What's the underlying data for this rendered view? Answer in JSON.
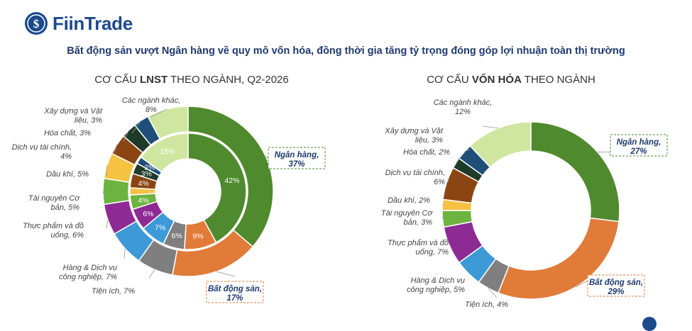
{
  "brand": {
    "name": "FiinTrade",
    "logo_icon": "fiintrade-logo-icon",
    "color": "#1c4a8c"
  },
  "headline": "Bất động sản vượt Ngân hàng về quy mô vốn hóa, đồng thời gia tăng tỷ trọng đóng góp lợi nhuận toàn thị trường",
  "chart_data": [
    {
      "type": "pie",
      "variant": "nested-donut",
      "title_prefix": "CƠ CẤU ",
      "title_bold": "LNST",
      "title_suffix": " THEO NGÀNH, Q2-2026",
      "categories": [
        "Ngân hàng",
        "Bất động sản",
        "Tiện ích",
        "Hàng & Dịch vụ công nghiệp",
        "Thực phẩm và đồ uống",
        "Tài nguyên Cơ bản",
        "Dầu khí",
        "Dịch vụ tài chính",
        "Hóa chất",
        "Xây dựng và Vật liệu",
        "Các ngành khác"
      ],
      "colors": [
        "#4f8a2e",
        "#e07b39",
        "#7f7f7f",
        "#3d9ad6",
        "#8e2a94",
        "#6cb33f",
        "#f5c242",
        "#8b4513",
        "#1e3a28",
        "#1f4f78",
        "#cfe6a0"
      ],
      "series": [
        {
          "name": "outer",
          "values": [
            37,
            17,
            7,
            7,
            6,
            5,
            5,
            4,
            3,
            3,
            8
          ],
          "labels": [
            "Ngân hàng,\n37%",
            "Bất động sản,\n17%",
            "Tiện ích, 7%",
            "Hàng & Dịch vụ\ncông nghiệp, 7%",
            "Thực phẩm và đồ\nuống, 6%",
            "Tài nguyên Cơ\nbản, 5%",
            "Dầu khí, 5%",
            "Dịch vụ tài chính,\n4%",
            "Hóa chất, 3%",
            "Xây dựng và Vật\nliệu, 3%",
            "Các ngành khác,\n8%"
          ]
        },
        {
          "name": "inner",
          "values": [
            42,
            9,
            6,
            7,
            6,
            4,
            2,
            4,
            3,
            2,
            15
          ],
          "labels": [
            "42%",
            "9%",
            "6%",
            "7%",
            "6%",
            "4%",
            "",
            "4%",
            "3%",
            "2%",
            "15%"
          ]
        }
      ],
      "highlight": [
        "Ngân hàng",
        "Bất động sản"
      ]
    },
    {
      "type": "pie",
      "variant": "donut",
      "title_prefix": "CƠ CẤU ",
      "title_bold": "VỐN HÓA",
      "title_suffix": " THEO NGÀNH",
      "categories": [
        "Ngân hàng",
        "Bất động sản",
        "Tiện ích",
        "Hàng & Dịch vụ công nghiệp",
        "Thực phẩm và đồ uống",
        "Tài nguyên Cơ bản",
        "Dầu khí",
        "Dịch vụ tài chính",
        "Hóa chất",
        "Xây dựng và Vật liệu",
        "Các ngành khác"
      ],
      "colors": [
        "#4f8a2e",
        "#e07b39",
        "#7f7f7f",
        "#3d9ad6",
        "#8e2a94",
        "#6cb33f",
        "#f5c242",
        "#8b4513",
        "#1e3a28",
        "#1f4f78",
        "#cfe6a0"
      ],
      "values": [
        27,
        29,
        4,
        5,
        7,
        3,
        2,
        6,
        2,
        3,
        12
      ],
      "labels": [
        "Ngân hàng,\n27%",
        "Bất động sản,\n29%",
        "Tiện ích, 4%",
        "Hàng & Dịch vụ\ncông nghiệp, 5%",
        "Thực phẩm và đồ\nuống, 7%",
        "Tài nguyên Cơ\nbản, 3%",
        "Dầu khí, 2%",
        "Dịch vụ tài chính,\n6%",
        "Hóa chất, 2%",
        "Xây dựng và Vật\nliệu, 3%",
        "Các ngành khác,\n12%"
      ],
      "highlight": [
        "Ngân hàng",
        "Bất động sản"
      ]
    }
  ]
}
